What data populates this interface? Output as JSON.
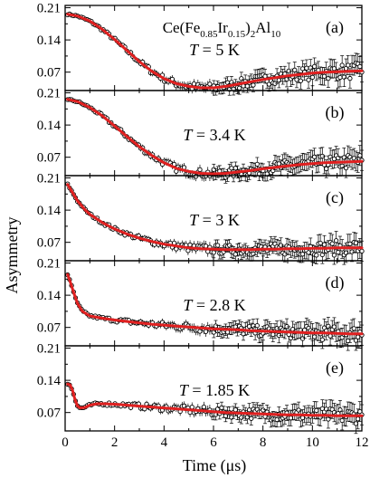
{
  "chart_data": {
    "type": "scatter",
    "layout": "stacked-panels",
    "title": "Ce(Fe0.85Ir0.15)2Al10",
    "title_parts": {
      "prefix": "Ce(Fe",
      "sub1": "0.85",
      "mid": "Ir",
      "sub2": "0.15",
      "mid2": ")",
      "sub3": "2",
      "suffix": "Al",
      "sub4": "10"
    },
    "xlabel": "Time (μs)",
    "ylabel": "Asymmetry",
    "xlim": [
      0,
      12
    ],
    "ylim": [
      0.03,
      0.215
    ],
    "xticks": [
      0,
      2,
      4,
      6,
      8,
      10,
      12
    ],
    "xtick_labels": [
      "0",
      "2",
      "4",
      "6",
      "8",
      "10",
      "12"
    ],
    "yticks": [
      0.07,
      0.14,
      0.21
    ],
    "ytick_labels": [
      "0.07",
      "0.14",
      "0.21"
    ],
    "marker_color": "#000000",
    "fit_color": "#e02020",
    "panels": [
      {
        "label": "(a)",
        "temperature_label": "T = 5 K",
        "temperature_italic": "T",
        "temperature_rest": " = 5 K",
        "data": {
          "x": [
            0.1,
            0.5,
            1.0,
            1.5,
            2.0,
            2.5,
            3.0,
            3.5,
            4.0,
            4.5,
            5.0,
            5.5,
            6.0,
            6.5,
            7.0,
            7.5,
            8.0,
            8.5,
            9.0,
            9.5,
            10.0,
            10.5,
            11.0,
            11.5,
            12.0
          ],
          "y": [
            0.196,
            0.192,
            0.181,
            0.163,
            0.141,
            0.117,
            0.093,
            0.072,
            0.056,
            0.045,
            0.039,
            0.036,
            0.036,
            0.039,
            0.044,
            0.049,
            0.054,
            0.058,
            0.062,
            0.065,
            0.068,
            0.07,
            0.071,
            0.072,
            0.073
          ]
        }
      },
      {
        "label": "(b)",
        "temperature_label": "T = 3.4 K",
        "temperature_italic": "T",
        "temperature_rest": " = 3.4 K",
        "data": {
          "x": [
            0.1,
            0.5,
            1.0,
            1.5,
            2.0,
            2.5,
            3.0,
            3.5,
            4.0,
            4.5,
            5.0,
            5.5,
            6.0,
            6.5,
            7.0,
            7.5,
            8.0,
            8.5,
            9.0,
            9.5,
            10.0,
            10.5,
            11.0,
            11.5,
            12.0
          ],
          "y": [
            0.196,
            0.191,
            0.178,
            0.16,
            0.138,
            0.115,
            0.093,
            0.074,
            0.058,
            0.046,
            0.039,
            0.035,
            0.034,
            0.035,
            0.038,
            0.041,
            0.045,
            0.048,
            0.051,
            0.054,
            0.056,
            0.058,
            0.059,
            0.06,
            0.061
          ]
        }
      },
      {
        "label": "(c)",
        "temperature_label": "T = 3 K",
        "temperature_italic": "T",
        "temperature_rest": " = 3 K",
        "data": {
          "x": [
            0.1,
            0.3,
            0.5,
            0.8,
            1.0,
            1.5,
            2.0,
            2.5,
            3.0,
            3.5,
            4.0,
            4.5,
            5.0,
            5.5,
            6.0,
            6.5,
            7.0,
            7.5,
            8.0,
            8.5,
            9.0,
            9.5,
            10.0,
            10.5,
            11.0,
            11.5,
            12.0
          ],
          "y": [
            0.196,
            0.178,
            0.16,
            0.141,
            0.131,
            0.113,
            0.099,
            0.088,
            0.079,
            0.072,
            0.066,
            0.062,
            0.058,
            0.056,
            0.055,
            0.054,
            0.054,
            0.054,
            0.055,
            0.055,
            0.056,
            0.056,
            0.057,
            0.057,
            0.058,
            0.058,
            0.058
          ]
        }
      },
      {
        "label": "(d)",
        "temperature_label": "T = 2.8 K",
        "temperature_italic": "T",
        "temperature_rest": " = 2.8 K",
        "data": {
          "x": [
            0.1,
            0.2,
            0.35,
            0.5,
            0.7,
            1.0,
            1.5,
            2.0,
            2.5,
            3.0,
            3.5,
            4.0,
            4.5,
            5.0,
            5.5,
            6.0,
            6.5,
            7.0,
            7.5,
            8.0,
            8.5,
            9.0,
            9.5,
            10.0,
            10.5,
            11.0,
            11.5,
            12.0
          ],
          "y": [
            0.185,
            0.17,
            0.145,
            0.122,
            0.105,
            0.095,
            0.09,
            0.086,
            0.083,
            0.08,
            0.077,
            0.075,
            0.073,
            0.071,
            0.069,
            0.067,
            0.066,
            0.065,
            0.063,
            0.062,
            0.061,
            0.06,
            0.059,
            0.058,
            0.058,
            0.057,
            0.056,
            0.056
          ]
        }
      },
      {
        "label": "(e)",
        "temperature_label": "T = 1.85 K",
        "temperature_italic": "T",
        "temperature_rest": " = 1.85 K",
        "data": {
          "x": [
            0.1,
            0.2,
            0.3,
            0.4,
            0.5,
            0.6,
            0.8,
            1.0,
            1.3,
            1.6,
            2.0,
            2.5,
            3.0,
            3.5,
            4.0,
            4.5,
            5.0,
            5.5,
            6.0,
            6.5,
            7.0,
            7.5,
            8.0,
            8.5,
            9.0,
            9.5,
            10.0,
            10.5,
            11.0,
            11.5,
            12.0
          ],
          "y": [
            0.132,
            0.13,
            0.118,
            0.098,
            0.084,
            0.08,
            0.081,
            0.086,
            0.089,
            0.089,
            0.088,
            0.086,
            0.084,
            0.082,
            0.08,
            0.078,
            0.076,
            0.074,
            0.072,
            0.07,
            0.069,
            0.068,
            0.067,
            0.066,
            0.065,
            0.065,
            0.064,
            0.064,
            0.063,
            0.063,
            0.063
          ]
        }
      }
    ]
  }
}
